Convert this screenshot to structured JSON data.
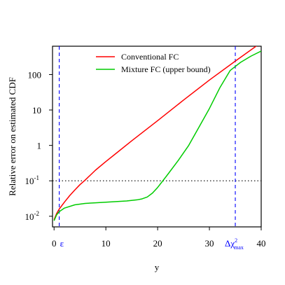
{
  "chart_data": {
    "type": "line",
    "title": "",
    "xlabel": "y",
    "ylabel": "Relative error on estimated CDF",
    "xlim": [
      -0.3,
      40
    ],
    "ylog": true,
    "ylim_log10": [
      -2.3,
      2.8
    ],
    "grid": false,
    "legend_position": "top-center",
    "x_ticks": [
      {
        "value": 0,
        "label": "0"
      },
      {
        "value": 10,
        "label": "10"
      },
      {
        "value": 20,
        "label": "20"
      },
      {
        "value": 30,
        "label": "30"
      },
      {
        "value": 40,
        "label": "40"
      }
    ],
    "y_ticks": [
      {
        "value": 0.01,
        "base": "10",
        "exp": "-2",
        "label": ""
      },
      {
        "value": 0.1,
        "base": "10",
        "exp": "-1",
        "label": ""
      },
      {
        "value": 1,
        "base": "",
        "exp": "",
        "label": "1"
      },
      {
        "value": 10,
        "base": "",
        "exp": "",
        "label": "10"
      },
      {
        "value": 100,
        "base": "",
        "exp": "",
        "label": "100"
      }
    ],
    "series": [
      {
        "name": "Conventional FC",
        "color": "#ff0000",
        "x": [
          0,
          0.5,
          1,
          2,
          3,
          4,
          5,
          6,
          8,
          10,
          12,
          15,
          20,
          25,
          30,
          35,
          40
        ],
        "y": [
          0.008,
          0.012,
          0.016,
          0.025,
          0.038,
          0.055,
          0.078,
          0.105,
          0.2,
          0.35,
          0.6,
          1.35,
          5.0,
          19,
          70,
          240,
          800
        ]
      },
      {
        "name": "Mixture FC (upper bound)",
        "color": "#00cc00",
        "x": [
          0,
          0.5,
          1,
          2,
          4,
          6,
          8,
          10,
          12,
          14,
          16,
          17,
          18,
          19,
          20,
          21,
          22,
          24,
          26,
          28,
          30,
          32,
          34,
          36,
          38,
          40
        ],
        "y": [
          0.0075,
          0.011,
          0.0135,
          0.017,
          0.021,
          0.023,
          0.024,
          0.025,
          0.026,
          0.027,
          0.029,
          0.031,
          0.035,
          0.045,
          0.065,
          0.1,
          0.155,
          0.38,
          1.0,
          3.3,
          11,
          42,
          130,
          220,
          330,
          460
        ]
      }
    ],
    "reference_lines": [
      {
        "orientation": "horizontal",
        "value": 0.1,
        "style": "dotted",
        "color": "#000000"
      },
      {
        "orientation": "vertical",
        "value": 1,
        "style": "dashed",
        "color": "#0000ff",
        "label": "ε"
      },
      {
        "orientation": "vertical",
        "value": 35,
        "style": "dashed",
        "color": "#0000ff",
        "label": "Δχ",
        "label_sup": "2",
        "label_sub": "max"
      }
    ]
  }
}
